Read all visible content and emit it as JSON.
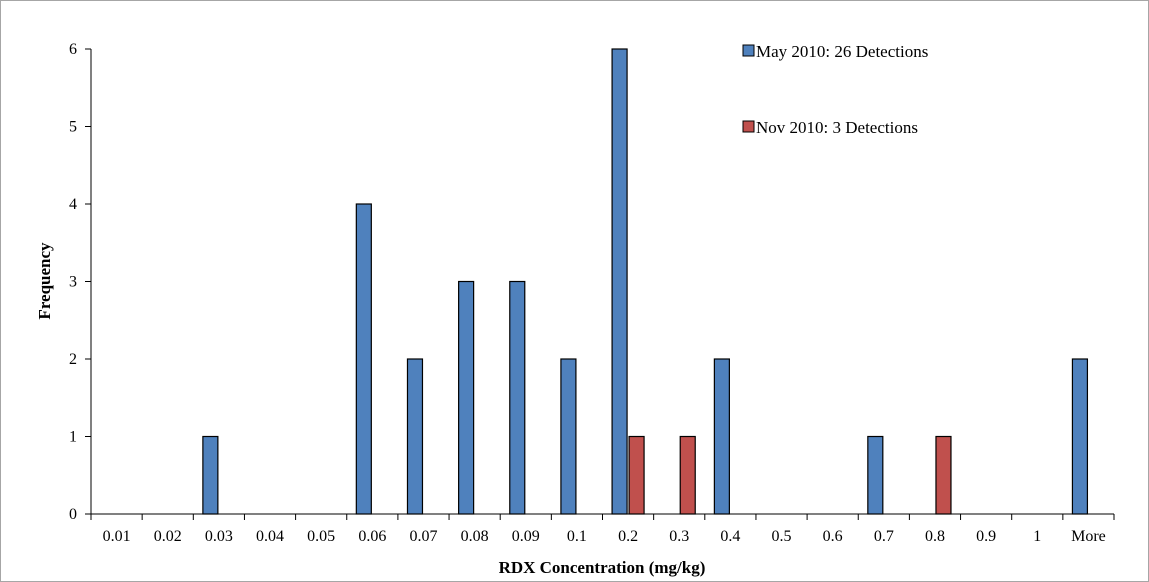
{
  "chart_data": {
    "type": "bar",
    "title": "",
    "xlabel": "RDX Concentration (mg/kg)",
    "ylabel": "Frequency",
    "ylim": [
      0,
      6
    ],
    "yticks": [
      0,
      1,
      2,
      3,
      4,
      5,
      6
    ],
    "grid": false,
    "legend_position": "top-right",
    "categories": [
      "0.01",
      "0.02",
      "0.03",
      "0.04",
      "0.05",
      "0.06",
      "0.07",
      "0.08",
      "0.09",
      "0.1",
      "0.2",
      "0.3",
      "0.4",
      "0.5",
      "0.6",
      "0.7",
      "0.8",
      "0.9",
      "1",
      "More"
    ],
    "series": [
      {
        "name": "May 2010: 26 Detections",
        "color": "#4f81bd",
        "values": [
          0,
          0,
          1,
          0,
          0,
          4,
          2,
          3,
          3,
          2,
          6,
          0,
          2,
          0,
          0,
          1,
          0,
          0,
          0,
          2
        ]
      },
      {
        "name": "Nov 2010: 3 Detections",
        "color": "#c0504d",
        "values": [
          0,
          0,
          0,
          0,
          0,
          0,
          0,
          0,
          0,
          0,
          1,
          1,
          0,
          0,
          0,
          0,
          1,
          0,
          0,
          0
        ]
      }
    ]
  }
}
